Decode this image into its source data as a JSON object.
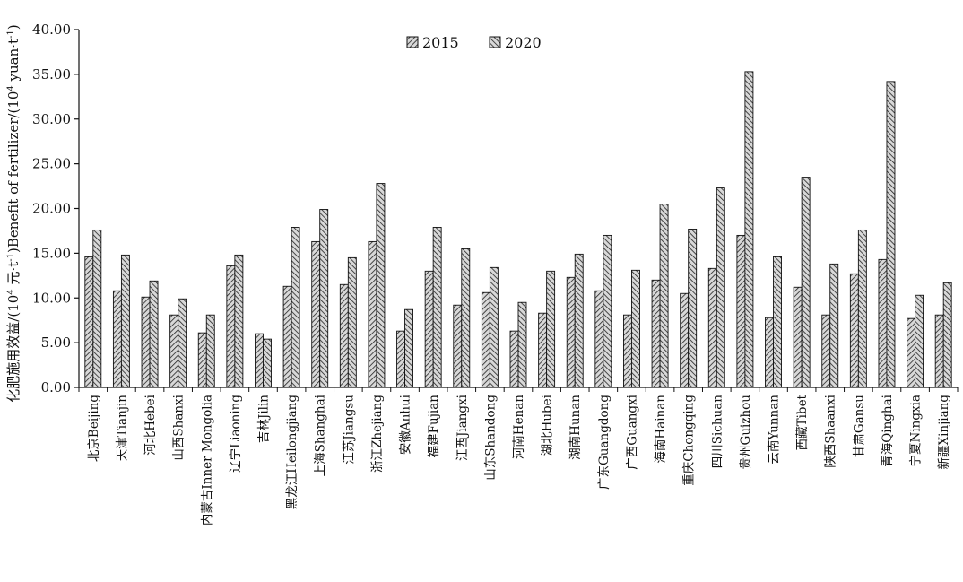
{
  "chart_data": {
    "type": "bar",
    "ylabel_prefix": "化肥施用效益/(10",
    "ylabel_sup1": "4",
    "ylabel_mid": " 元·t",
    "ylabel_sup2": "-1",
    "ylabel_mid2": ")Benefit of fertilizer/(10",
    "ylabel_sup3": "4",
    "ylabel_mid3": " yuan·t",
    "ylabel_sup4": "-1",
    "ylabel_end": ")",
    "ylim": [
      0,
      40
    ],
    "yticks": [
      "0.00",
      "5.00",
      "10.00",
      "15.00",
      "20.00",
      "25.00",
      "30.00",
      "35.00",
      "40.00"
    ],
    "ytick_values": [
      0,
      5,
      10,
      15,
      20,
      25,
      30,
      35,
      40
    ],
    "grid": false,
    "legend_position": "top-center",
    "categories": [
      "北京Beijing",
      "天津Tianjin",
      "河北Hebei",
      "山西Shanxi",
      "内蒙古Inner Mongolia",
      "辽宁Liaoning",
      "吉林Jilin",
      "黑龙江Heilongjiang",
      "上海Shanghai",
      "江苏Jiangsu",
      "浙江Zhejiang",
      "安徽Anhui",
      "福建Fujian",
      "江西Jiangxi",
      "山东Shandong",
      "河南Henan",
      "湖北Hubei",
      "湖南Hunan",
      "广东Guangdong",
      "广西Guangxi",
      "海南Hainan",
      "重庆Chongqing",
      "四川Sichuan",
      "贵州Guizhou",
      "云南Yunnan",
      "西藏Tibet",
      "陕西Shaanxi",
      "甘肃Gansu",
      "青海Qinghai",
      "宁夏Ningxia",
      "新疆Xinjiang"
    ],
    "series": [
      {
        "name": "2015",
        "values": [
          14.6,
          10.8,
          10.1,
          8.1,
          6.1,
          13.6,
          6.0,
          11.3,
          16.3,
          11.5,
          16.3,
          6.3,
          13.0,
          9.2,
          10.6,
          6.3,
          8.3,
          12.3,
          10.8,
          8.1,
          12.0,
          10.5,
          13.3,
          17.0,
          7.8,
          11.2,
          8.1,
          12.7,
          14.3,
          7.7,
          8.1
        ]
      },
      {
        "name": "2020",
        "values": [
          17.6,
          14.8,
          11.9,
          9.9,
          8.1,
          14.8,
          5.4,
          17.9,
          19.9,
          14.5,
          22.8,
          8.7,
          17.9,
          15.5,
          13.4,
          9.5,
          13.0,
          14.9,
          17.0,
          13.1,
          20.5,
          17.7,
          22.3,
          35.3,
          14.6,
          23.5,
          13.8,
          17.6,
          34.2,
          10.3,
          11.7
        ]
      }
    ]
  },
  "colors": {
    "axis": "#111111",
    "bar_fill": "#bdbdbd",
    "hatch": "#222222"
  }
}
